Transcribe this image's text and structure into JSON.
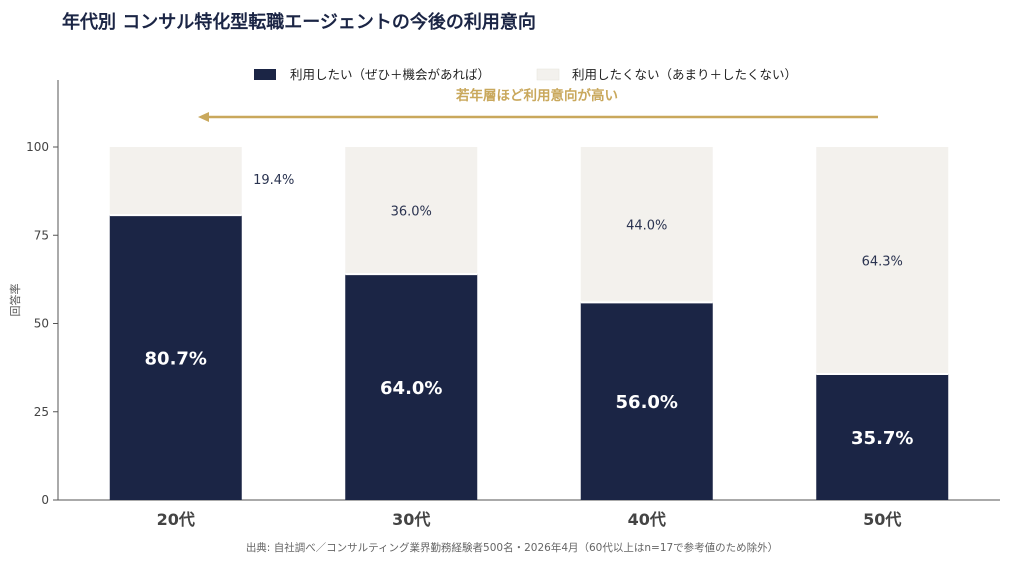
{
  "chart_data": {
    "type": "bar",
    "stacked": true,
    "title": "年代別 コンサル特化型転職エージェントの今後の利用意向",
    "xlabel": "",
    "ylabel": "回答率",
    "ylim": [
      0,
      118
    ],
    "yticks": [
      0,
      25,
      50,
      75,
      100
    ],
    "categories": [
      "20代",
      "30代",
      "40代",
      "50代"
    ],
    "series": [
      {
        "name": "利用したい（ぜひ＋機会があれば）",
        "values": [
          80.7,
          64.0,
          56.0,
          35.7
        ],
        "color": "#1b2545"
      },
      {
        "name": "利用したくない（あまり＋したくない）",
        "values": [
          19.4,
          36.0,
          44.0,
          64.3
        ],
        "color": "#f3f1ed"
      }
    ],
    "labels_bottom": [
      "80.7%",
      "64.0%",
      "56.0%",
      "35.7%"
    ],
    "labels_top": [
      "19.4%",
      "36.0%",
      "44.0%",
      "64.3%"
    ],
    "annotation": {
      "text": "若年層ほど利用意向が高い",
      "color": "#c9a85c"
    },
    "legend": "top-center",
    "grid": false,
    "source": "出典: 自社調べ／コンサルティング業界勤務経験者500名・2026年4月（60代以上はn=17で参考値のため除外）"
  }
}
